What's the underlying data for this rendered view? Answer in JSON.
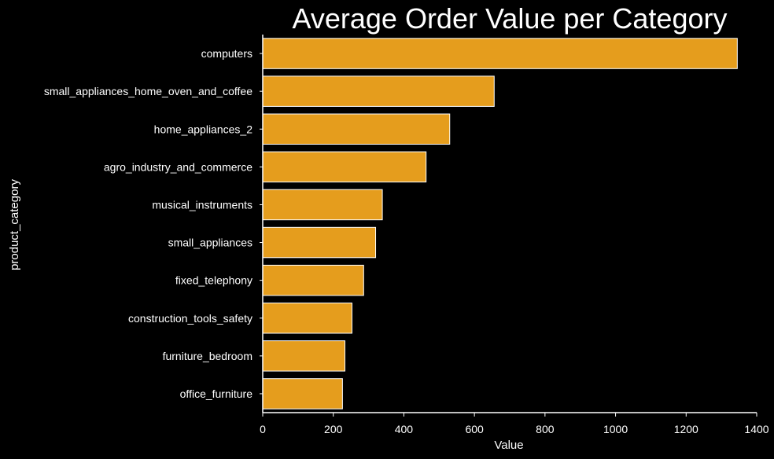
{
  "chart_data": {
    "type": "bar",
    "orientation": "horizontal",
    "title": "Average Order Value per Category",
    "xlabel": "Value",
    "ylabel": "product_category",
    "xlim": [
      0,
      1400
    ],
    "xticks": [
      "0",
      "200",
      "400",
      "600",
      "800",
      "1000",
      "1200",
      "1400"
    ],
    "grid": false,
    "legend": "none",
    "categories": [
      "computers",
      "small_appliances_home_oven_and_coffee",
      "home_appliances_2",
      "agro_industry_and_commerce",
      "musical_instruments",
      "small_appliances",
      "fixed_telephony",
      "construction_tools_safety",
      "furniture_bedroom",
      "office_furniture"
    ],
    "values": [
      1345,
      656,
      530,
      463,
      339,
      320,
      286,
      253,
      233,
      226
    ],
    "colors": {
      "background": "#000000",
      "bar_fill": "#e59d1d",
      "bar_edge": "#ffffff",
      "axis": "#ffffff",
      "text": "#ffffff"
    }
  }
}
